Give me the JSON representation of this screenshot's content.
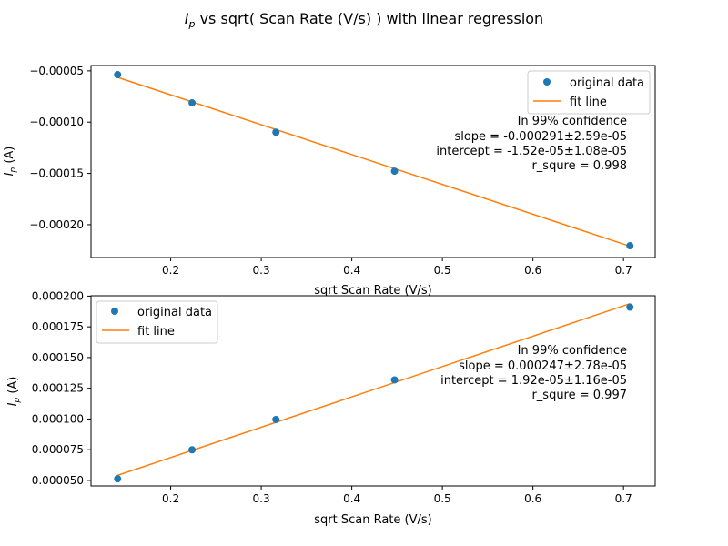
{
  "chart_data": [
    {
      "type": "scatter",
      "title_symbol": "I",
      "title_subscript": "p",
      "title_rest": " vs sqrt( Scan Rate (V/s) ) with linear regression",
      "xlabel": "sqrt Scan Rate (V/s)",
      "ylabel_symbol": "I",
      "ylabel_subscript": "p",
      "ylabel_unit": " (A)",
      "xlim": [
        0.112,
        0.735
      ],
      "ylim": [
        -0.000232,
        -4.48e-05
      ],
      "x_ticks": [
        0.2,
        0.3,
        0.4,
        0.5,
        0.6,
        0.7
      ],
      "x_tick_labels": [
        "0.2",
        "0.3",
        "0.4",
        "0.5",
        "0.6",
        "0.7"
      ],
      "y_ticks": [
        -5e-05,
        -0.0001,
        -0.00015,
        -0.0002
      ],
      "y_tick_labels": [
        "−0.00005",
        "−0.00010",
        "−0.00015",
        "−0.00020"
      ],
      "series": [
        {
          "name": "original data",
          "kind": "scatter",
          "color": "#1f77b4",
          "x": [
            0.1414,
            0.2236,
            0.3162,
            0.4472,
            0.7071
          ],
          "y": [
            -5.37e-05,
            -8.12e-05,
            -0.0001098,
            -0.0001478,
            -0.0002205
          ]
        },
        {
          "name": "fit line",
          "kind": "line",
          "color": "#ff7f0e",
          "slope": -0.000291,
          "intercept": -1.52e-05,
          "x_range": [
            0.1414,
            0.7071
          ]
        }
      ],
      "legend_position": "upper-right",
      "annotation": {
        "line1": "In 99% confidence",
        "line2": "slope = -0.000291±2.59e-05",
        "line3": "intercept = -1.52e-05±1.08e-05",
        "line4": "r_squre = 0.998"
      }
    },
    {
      "type": "scatter",
      "xlabel": "sqrt Scan Rate (V/s)",
      "ylabel_symbol": "I",
      "ylabel_subscript": "p",
      "ylabel_unit": " (A)",
      "xlim": [
        0.112,
        0.735
      ],
      "ylim": [
        4.55e-05,
        0.0002003
      ],
      "x_ticks": [
        0.2,
        0.3,
        0.4,
        0.5,
        0.6,
        0.7
      ],
      "x_tick_labels": [
        "0.2",
        "0.3",
        "0.4",
        "0.5",
        "0.6",
        "0.7"
      ],
      "y_ticks": [
        5e-05,
        7.5e-05,
        0.0001,
        0.000125,
        0.00015,
        0.000175,
        0.0002
      ],
      "y_tick_labels": [
        "0.000050",
        "0.000075",
        "0.000100",
        "0.000125",
        "0.000150",
        "0.000175",
        "0.000200"
      ],
      "series": [
        {
          "name": "original data",
          "kind": "scatter",
          "color": "#1f77b4",
          "x": [
            0.1414,
            0.2236,
            0.3162,
            0.4472,
            0.7071
          ],
          "y": [
            5.13e-05,
            7.49e-05,
            9.96e-05,
            0.0001318,
            0.000191
          ]
        },
        {
          "name": "fit line",
          "kind": "line",
          "color": "#ff7f0e",
          "slope": 0.000247,
          "intercept": 1.92e-05,
          "x_range": [
            0.1414,
            0.7071
          ]
        }
      ],
      "legend_position": "upper-left",
      "annotation": {
        "line1": "In 99% confidence",
        "line2": "slope = 0.000247±2.78e-05",
        "line3": "intercept = 1.92e-05±1.16e-05",
        "line4": "r_squre = 0.997"
      }
    }
  ]
}
